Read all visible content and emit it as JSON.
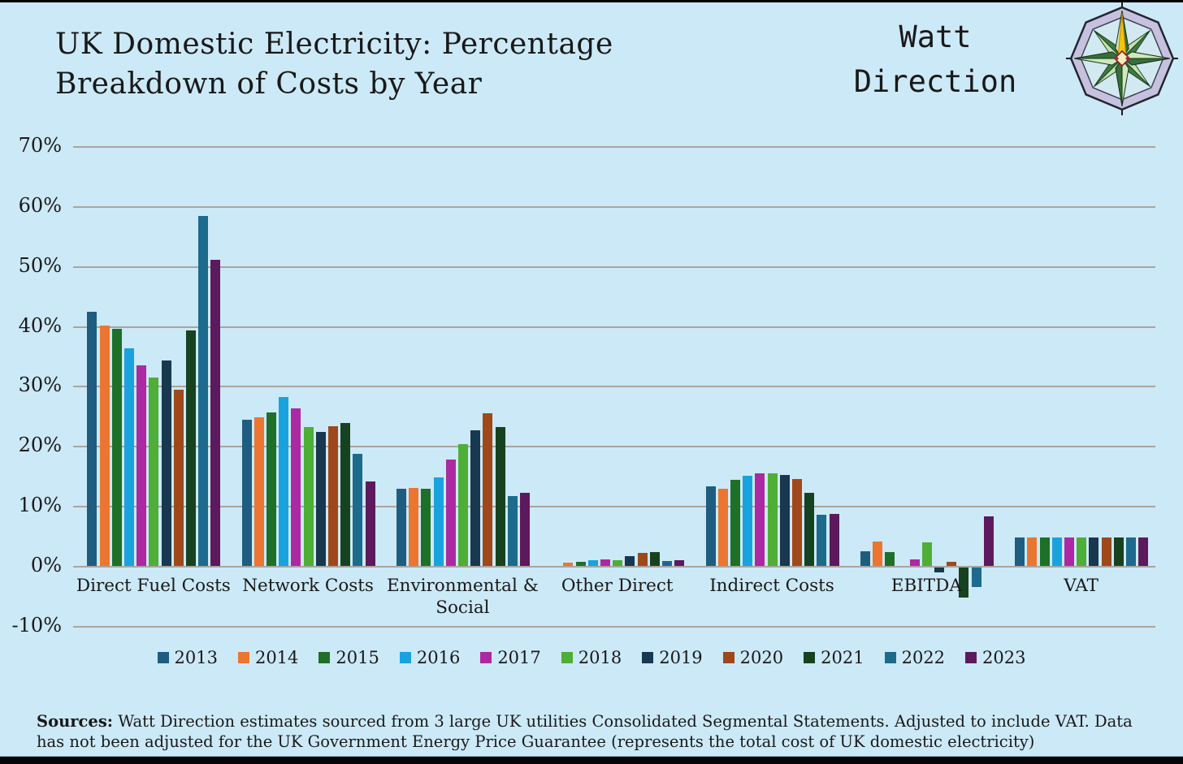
{
  "page": {
    "background_color": "#cce9f7",
    "text_color": "#191919",
    "gridline_color": "#aba49d"
  },
  "header": {
    "title": "UK Domestic Electricity: Percentage Breakdown of Costs by Year",
    "brand": {
      "line1": "Watt",
      "line2": "Direction"
    }
  },
  "footer": {
    "sources_label": "Sources:",
    "sources_text": " Watt Direction estimates sourced from 3 large UK utilities Consolidated Segmental Statements. Adjusted to include VAT. Data has not been adjusted for the UK Government Energy Price Guarantee (represents the total cost of UK domestic electricity)"
  },
  "chart_data": {
    "type": "bar",
    "title": "UK Domestic Electricity: Percentage Breakdown of Costs by Year",
    "unit": "%",
    "ylim": [
      -10,
      70
    ],
    "ytick_values": [
      70,
      60,
      50,
      40,
      30,
      20,
      10,
      0,
      -10
    ],
    "ytick_labels": [
      "70%",
      "60%",
      "50%",
      "40%",
      "30%",
      "20%",
      "10%",
      "0%",
      "-10%"
    ],
    "grid": "horizontal",
    "legend_position": "bottom",
    "categories": [
      "Direct Fuel Costs",
      "Network Costs",
      "Environmental & Social",
      "Other Direct",
      "Indirect Costs",
      "EBITDA",
      "VAT"
    ],
    "series": [
      {
        "name": "2013",
        "color": "#1f5d80",
        "values": [
          42.4,
          24.3,
          12.8,
          0.0,
          13.2,
          2.4,
          4.8
        ]
      },
      {
        "name": "2014",
        "color": "#ec7530",
        "values": [
          40.1,
          24.8,
          13.0,
          0.5,
          12.8,
          4.0,
          4.8
        ]
      },
      {
        "name": "2015",
        "color": "#1e7028",
        "values": [
          39.5,
          25.6,
          12.8,
          0.7,
          14.3,
          2.3,
          4.8
        ]
      },
      {
        "name": "2016",
        "color": "#18a3df",
        "values": [
          36.3,
          28.1,
          14.8,
          1.0,
          15.0,
          0.0,
          4.8
        ]
      },
      {
        "name": "2017",
        "color": "#ad28a3",
        "values": [
          33.5,
          26.3,
          17.7,
          1.1,
          15.4,
          1.1,
          4.8
        ]
      },
      {
        "name": "2018",
        "color": "#4fae37",
        "values": [
          31.4,
          23.2,
          20.3,
          0.9,
          15.4,
          3.9,
          4.8
        ]
      },
      {
        "name": "2019",
        "color": "#17384e",
        "values": [
          34.2,
          22.4,
          22.6,
          1.6,
          15.2,
          -0.8,
          4.8
        ]
      },
      {
        "name": "2020",
        "color": "#a0481a",
        "values": [
          29.4,
          23.3,
          25.4,
          2.2,
          14.5,
          0.7,
          4.8
        ]
      },
      {
        "name": "2021",
        "color": "#174220",
        "values": [
          39.3,
          23.8,
          23.1,
          2.3,
          12.2,
          -5.0,
          4.8
        ]
      },
      {
        "name": "2022",
        "color": "#1c6b8d",
        "values": [
          58.4,
          18.7,
          11.7,
          0.8,
          8.5,
          -3.2,
          4.8
        ]
      },
      {
        "name": "2023",
        "color": "#5d195d",
        "values": [
          51.0,
          14.1,
          12.2,
          0.9,
          8.7,
          8.2,
          4.8
        ]
      }
    ]
  }
}
